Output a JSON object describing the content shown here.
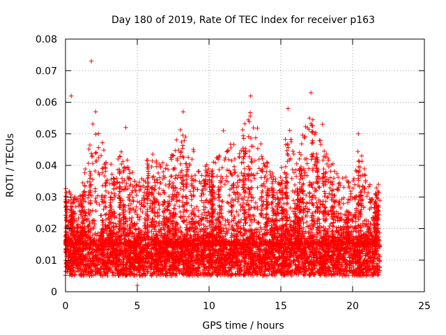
{
  "chart_data": {
    "type": "scatter",
    "title": "Day 180 of 2019, Rate Of TEC Index for receiver p163",
    "xlabel": "GPS time / hours",
    "ylabel": "ROTI / TECUs",
    "xlim": [
      0,
      25
    ],
    "ylim": [
      0,
      0.08
    ],
    "x_ticks": [
      0,
      5,
      10,
      15,
      20,
      25
    ],
    "x_tick_labels": [
      "0",
      "5",
      "10",
      "15",
      "20",
      "25"
    ],
    "y_ticks": [
      0,
      0.01,
      0.02,
      0.03,
      0.04,
      0.05,
      0.06,
      0.07,
      0.08
    ],
    "y_tick_labels": [
      "0",
      "0.01",
      "0.02",
      "0.03",
      "0.04",
      "0.05",
      "0.06",
      "0.07",
      "0.08"
    ],
    "grid": true,
    "marker": "plus",
    "color": "#ff0000",
    "x_range_of_data": [
      0.0,
      21.9
    ],
    "baseline_band": [
      0.005,
      0.015
    ],
    "series": [
      {
        "name": "ROTI",
        "notable_points": [
          {
            "x": 1.8,
            "y": 0.073
          },
          {
            "x": 0.4,
            "y": 0.062
          },
          {
            "x": 12.9,
            "y": 0.062
          },
          {
            "x": 17.1,
            "y": 0.063
          },
          {
            "x": 2.1,
            "y": 0.057
          },
          {
            "x": 8.2,
            "y": 0.057
          },
          {
            "x": 15.5,
            "y": 0.058
          },
          {
            "x": 4.2,
            "y": 0.052
          },
          {
            "x": 20.4,
            "y": 0.05
          },
          {
            "x": 17.9,
            "y": 0.053
          },
          {
            "x": 11.0,
            "y": 0.051
          },
          {
            "x": 0.1,
            "y": 0.025
          },
          {
            "x": 5.0,
            "y": 0.002
          },
          {
            "x": 21.8,
            "y": 0.034
          }
        ],
        "envelope": [
          {
            "x": 0.0,
            "peak": 0.033
          },
          {
            "x": 1.0,
            "peak": 0.03
          },
          {
            "x": 2.0,
            "peak": 0.057
          },
          {
            "x": 3.0,
            "peak": 0.04
          },
          {
            "x": 4.0,
            "peak": 0.045
          },
          {
            "x": 5.0,
            "peak": 0.035
          },
          {
            "x": 6.0,
            "peak": 0.045
          },
          {
            "x": 7.0,
            "peak": 0.04
          },
          {
            "x": 8.0,
            "peak": 0.052
          },
          {
            "x": 9.0,
            "peak": 0.045
          },
          {
            "x": 10.0,
            "peak": 0.04
          },
          {
            "x": 11.0,
            "peak": 0.046
          },
          {
            "x": 12.0,
            "peak": 0.048
          },
          {
            "x": 13.0,
            "peak": 0.059
          },
          {
            "x": 14.0,
            "peak": 0.042
          },
          {
            "x": 15.0,
            "peak": 0.038
          },
          {
            "x": 15.5,
            "peak": 0.055
          },
          {
            "x": 16.0,
            "peak": 0.042
          },
          {
            "x": 17.0,
            "peak": 0.06
          },
          {
            "x": 18.0,
            "peak": 0.045
          },
          {
            "x": 19.0,
            "peak": 0.038
          },
          {
            "x": 20.0,
            "peak": 0.035
          },
          {
            "x": 20.5,
            "peak": 0.048
          },
          {
            "x": 21.0,
            "peak": 0.035
          },
          {
            "x": 21.9,
            "peak": 0.033
          }
        ]
      }
    ]
  }
}
